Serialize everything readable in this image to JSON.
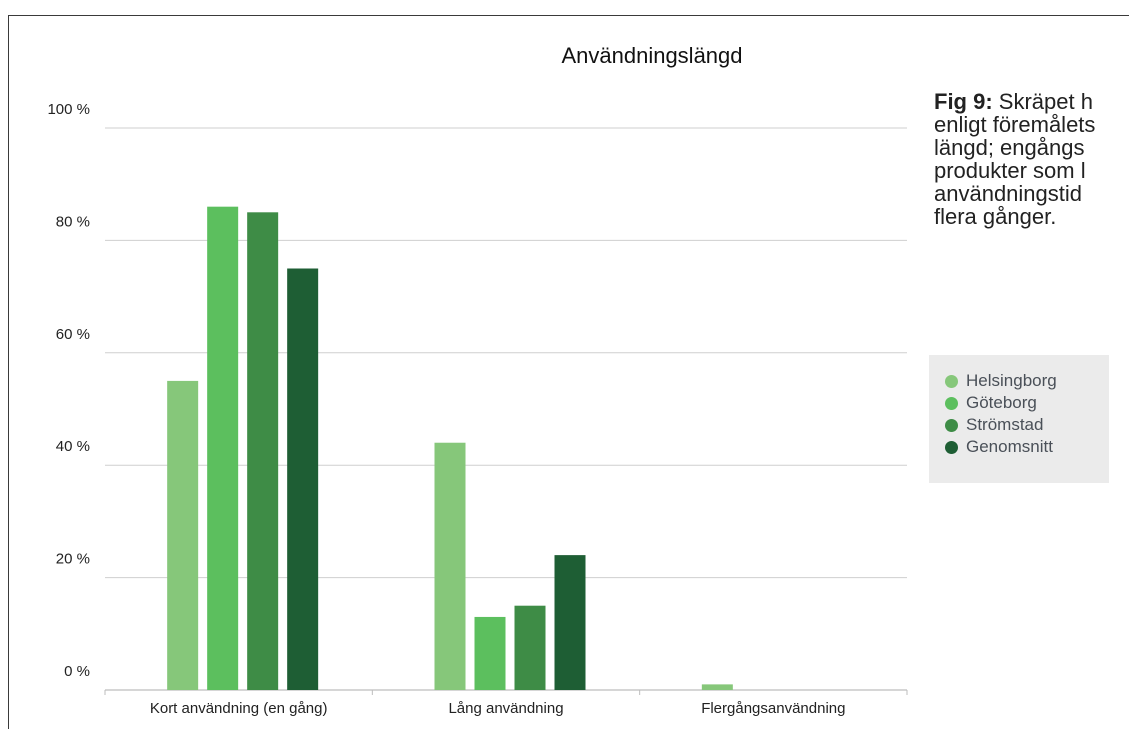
{
  "caption": {
    "label": "Fig 9:",
    "lines": [
      " Skräpet h",
      "enligt föremålets",
      "längd; engångs",
      "produkter som l",
      "användningstid",
      "flera gånger."
    ]
  },
  "chart_data": {
    "type": "bar",
    "title": "Användningslängd",
    "xlabel": "",
    "ylabel": "",
    "categories": [
      "Kort användning (en gång)",
      "Lång användning",
      "Flergångsanvändning"
    ],
    "series": [
      {
        "name": "Helsingborg",
        "values": [
          55,
          44,
          1
        ],
        "color": "#86c77a"
      },
      {
        "name": "Göteborg",
        "values": [
          86,
          13,
          0
        ],
        "color": "#5cbf5e"
      },
      {
        "name": "Strömstad",
        "values": [
          85,
          15,
          0
        ],
        "color": "#3e8c46"
      },
      {
        "name": "Genomsnitt",
        "values": [
          75,
          24,
          0
        ],
        "color": "#1e5e34"
      }
    ],
    "yticks": [
      "0 %",
      "20 %",
      "40 %",
      "60 %",
      "80 %",
      "100 %"
    ],
    "ylim": [
      0,
      100
    ],
    "grid": true,
    "legend_position": "right"
  }
}
